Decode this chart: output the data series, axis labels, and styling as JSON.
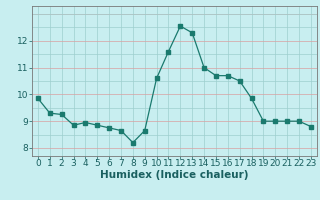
{
  "x": [
    0,
    1,
    2,
    3,
    4,
    5,
    6,
    7,
    8,
    9,
    10,
    11,
    12,
    13,
    14,
    15,
    16,
    17,
    18,
    19,
    20,
    21,
    22,
    23
  ],
  "y": [
    9.85,
    9.3,
    9.25,
    8.85,
    8.95,
    8.85,
    8.75,
    8.65,
    8.2,
    8.65,
    10.6,
    11.6,
    12.55,
    12.3,
    11.0,
    10.7,
    10.7,
    10.5,
    9.85,
    9.0,
    9.0,
    9.0,
    9.0,
    8.8
  ],
  "xlabel": "Humidex (Indice chaleur)",
  "ylabel_ticks": [
    8,
    9,
    10,
    11,
    12
  ],
  "ylim": [
    7.7,
    13.3
  ],
  "xlim": [
    -0.5,
    23.5
  ],
  "line_color": "#1a7a6e",
  "marker_color": "#1a7a6e",
  "bg_color": "#c8eef0",
  "grid_color_v": "#9ecfce",
  "grid_color_h_major": "#d8a0a0",
  "grid_color_h_minor": "#9ecfce",
  "xlabel_fontsize": 7.5,
  "tick_fontsize": 6.5
}
